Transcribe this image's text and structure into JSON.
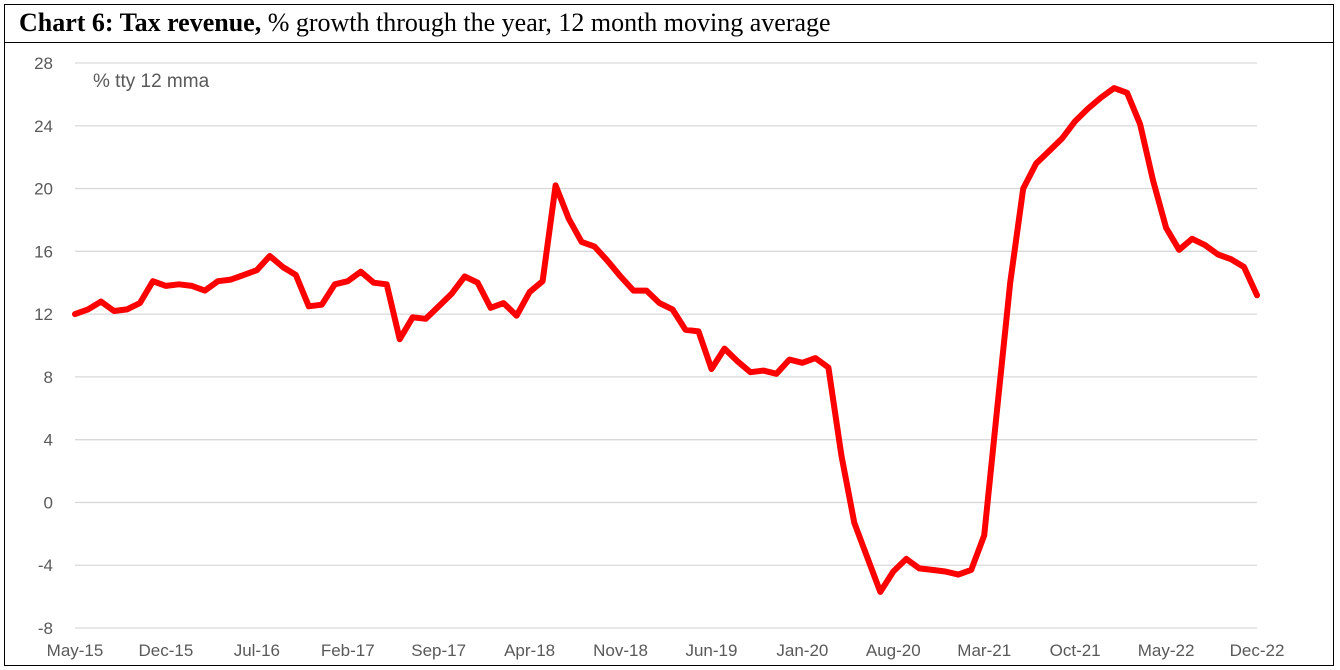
{
  "title": {
    "bold": "Chart 6: Tax revenue,",
    "rest": " % growth through the year, 12 month moving average"
  },
  "chart_data": {
    "type": "line",
    "title": "Chart 6: Tax revenue, % growth through the year, 12 month moving average",
    "unit_label": "% tty 12 mma",
    "ylim": [
      -8,
      28
    ],
    "y_ticks": [
      -8,
      -4,
      0,
      4,
      8,
      12,
      16,
      20,
      24,
      28
    ],
    "x_tick_labels": [
      "May-15",
      "Dec-15",
      "Jul-16",
      "Feb-17",
      "Sep-17",
      "Apr-18",
      "Nov-18",
      "Jun-19",
      "Jan-20",
      "Aug-20",
      "Mar-21",
      "Oct-21",
      "May-22",
      "Dec-22"
    ],
    "grid": true,
    "line_color": "#ff0000",
    "x_start": "May-15",
    "series": [
      {
        "values": [
          12.0,
          12.3,
          12.8,
          12.2,
          12.3,
          12.7,
          14.1,
          13.8,
          13.9,
          13.8,
          13.5,
          14.1,
          14.2,
          14.5,
          14.8,
          15.7,
          15.0,
          14.5,
          12.5,
          12.6,
          13.9,
          14.1,
          14.7,
          14.0,
          13.9,
          10.4,
          11.8,
          11.7,
          12.5,
          13.3,
          14.4,
          14.0,
          12.4,
          12.7,
          11.9,
          13.4,
          14.1,
          20.2,
          18.1,
          16.6,
          16.3,
          15.4,
          14.4,
          13.5,
          13.5,
          12.7,
          12.3,
          11.0,
          10.9,
          8.5,
          9.8,
          9.0,
          8.3,
          8.4,
          8.2,
          9.1,
          8.9,
          9.2,
          8.6,
          3.0,
          -1.3,
          -3.5,
          -5.7,
          -4.4,
          -3.6,
          -4.2,
          -4.3,
          -4.4,
          -4.6,
          -4.3,
          -2.1,
          6.0,
          14.0,
          20.0,
          21.6,
          22.4,
          23.2,
          24.3,
          25.1,
          25.8,
          26.4,
          26.1,
          24.1,
          20.5,
          17.5,
          16.1,
          16.8,
          16.4,
          15.8,
          15.5,
          15.0,
          13.2
        ]
      }
    ]
  }
}
